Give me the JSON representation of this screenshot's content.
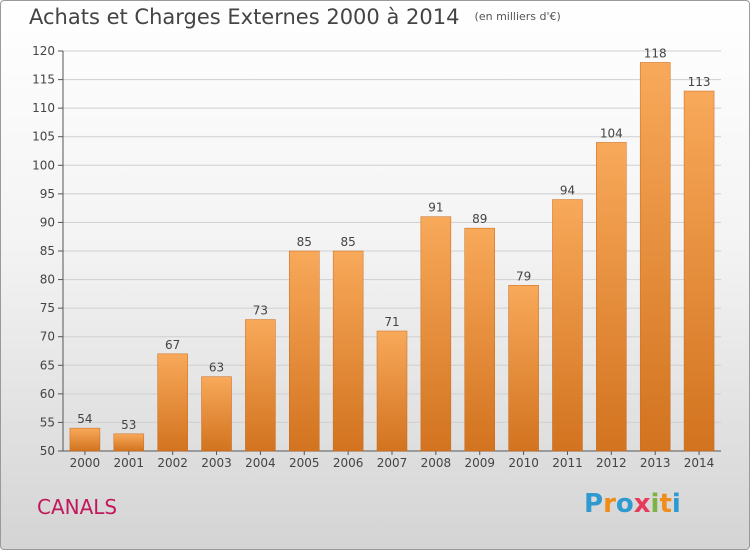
{
  "title": "Achats et Charges Externes 2000 à 2014",
  "subtitle": "(en milliers d'€)",
  "town": "CANALS",
  "logo": {
    "letters": [
      "P",
      "r",
      "o",
      "x",
      "i",
      "t",
      "i"
    ],
    "colors": [
      "#2e9ad0",
      "#f08c1a",
      "#2e9ad0",
      "#e83a5a",
      "#7cb342",
      "#f08c1a",
      "#2e9ad0"
    ]
  },
  "chart_data": {
    "type": "bar",
    "categories": [
      "2000",
      "2001",
      "2002",
      "2003",
      "2004",
      "2005",
      "2006",
      "2007",
      "2008",
      "2009",
      "2010",
      "2011",
      "2012",
      "2013",
      "2014"
    ],
    "values": [
      54,
      53,
      67,
      63,
      73,
      85,
      85,
      71,
      91,
      89,
      79,
      94,
      104,
      118,
      113
    ],
    "data_labels": [
      "54",
      "53",
      "67",
      "63",
      "73",
      "85",
      "85",
      "71",
      "91",
      "89",
      "79",
      "94",
      "104",
      "118",
      "113"
    ],
    "yticks": [
      50,
      55,
      60,
      65,
      70,
      75,
      80,
      85,
      90,
      95,
      100,
      105,
      110,
      115,
      120
    ],
    "ylim": [
      50,
      120
    ],
    "bar_color_top": "#f8a95a",
    "bar_color_bottom": "#d2731f",
    "grid": true,
    "legend": "none"
  }
}
